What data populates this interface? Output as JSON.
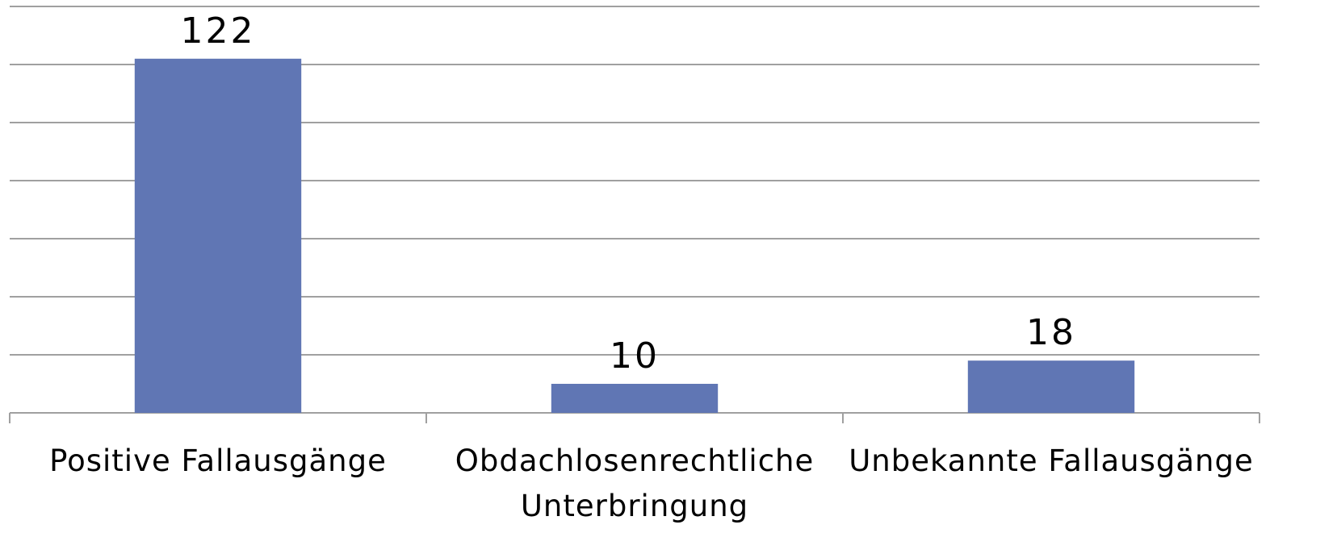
{
  "chart_data": {
    "type": "bar",
    "categories": [
      "Positive Fallausgänge",
      "Obdachlosenrechtliche Unterbringung",
      "Unbekannte Fallausgänge"
    ],
    "values": [
      122,
      10,
      18
    ],
    "color": "#6076b4",
    "ylim": [
      0,
      140
    ],
    "yticks": [
      0,
      20,
      40,
      60,
      80,
      100,
      120,
      140
    ],
    "grid": true
  }
}
